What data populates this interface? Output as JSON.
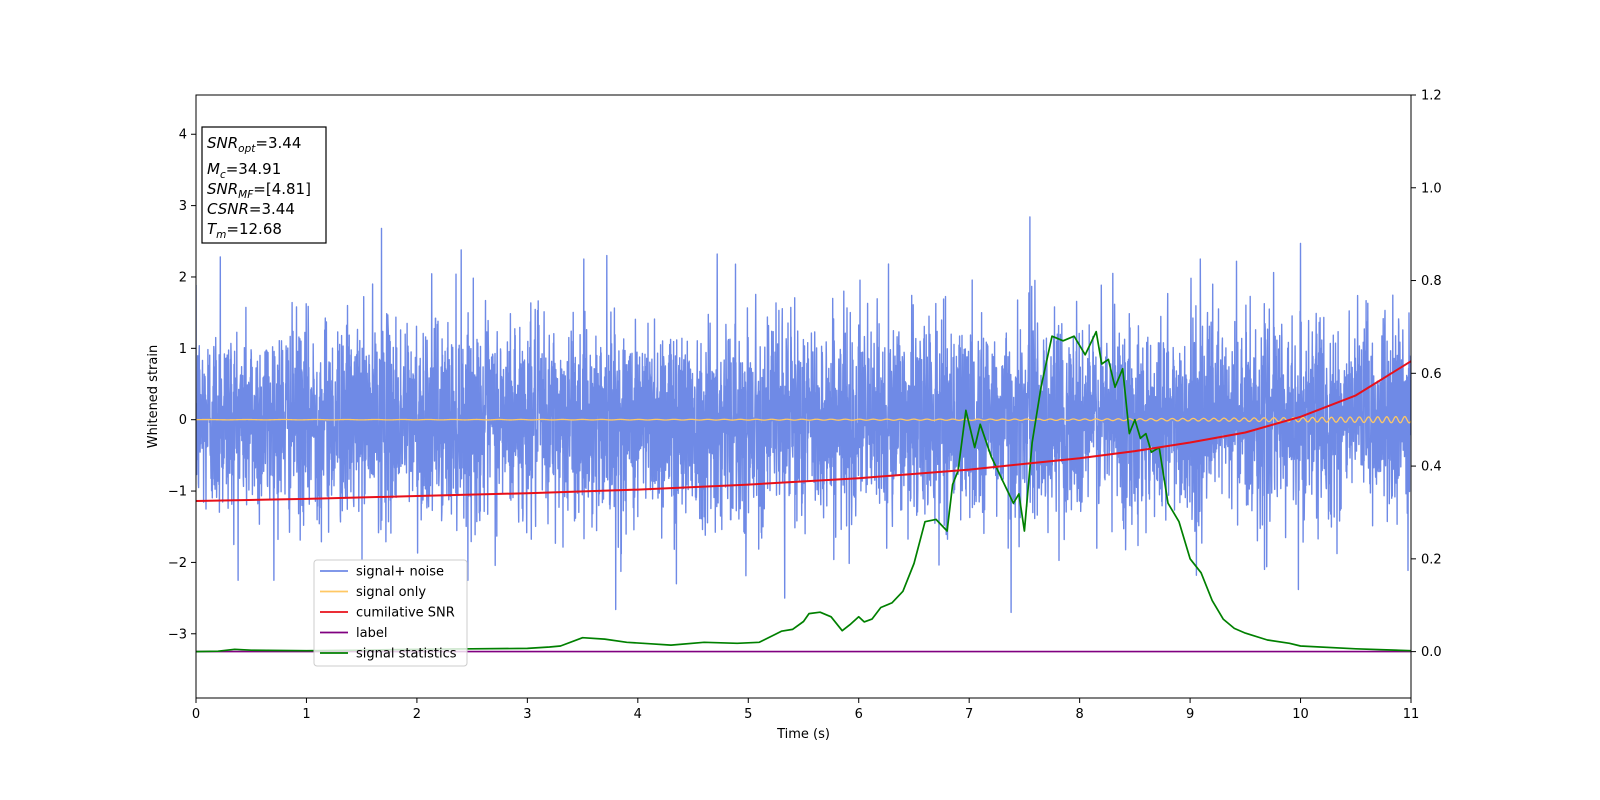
{
  "chart_data": {
    "type": "line",
    "title": "",
    "xlabel": "Time (s)",
    "ylabel": "Whitened strain",
    "xlim": [
      0,
      11
    ],
    "ylim": [
      -3.9,
      4.55
    ],
    "y2lim": [
      -0.1,
      1.2
    ],
    "xticks": [
      "0",
      "1",
      "2",
      "3",
      "4",
      "5",
      "6",
      "7",
      "8",
      "9",
      "10",
      "11"
    ],
    "yticks": [
      "−3",
      "−2",
      "−1",
      "0",
      "1",
      "2",
      "3",
      "4"
    ],
    "y2ticks": [
      "0.0",
      "0.2",
      "0.4",
      "0.6",
      "0.8",
      "1.0",
      "1.2"
    ],
    "grid": false,
    "legend_position": "lower-left",
    "annotation": {
      "lines": [
        {
          "sym": "SNR",
          "sub": "opt",
          "val": "=3.44"
        },
        {
          "sym": "M",
          "sub": "c",
          "val": "=34.91"
        },
        {
          "sym": "SNR",
          "sub": "MF",
          "val": "=[4.81]"
        },
        {
          "sym": "CSNR",
          "sub": "",
          "val": "=3.44"
        },
        {
          "sym": "T",
          "sub": "m",
          "val": "=12.68"
        }
      ]
    },
    "series": [
      {
        "name": "signal+ noise",
        "color": "#6f8ae6",
        "axis": "left",
        "kind": "noise",
        "amplitude_std": 0.68,
        "peaks": [
          {
            "x": 0.22,
            "y": 2.28
          },
          {
            "x": 1.68,
            "y": 2.68
          },
          {
            "x": 2.4,
            "y": 2.38
          },
          {
            "x": 3.8,
            "y": -2.66
          },
          {
            "x": 4.72,
            "y": 2.32
          },
          {
            "x": 5.33,
            "y": -2.5
          },
          {
            "x": 6.27,
            "y": 2.18
          },
          {
            "x": 7.55,
            "y": 2.84
          },
          {
            "x": 7.38,
            "y": -2.7
          },
          {
            "x": 10.0,
            "y": 2.47
          },
          {
            "x": 9.98,
            "y": -2.38
          },
          {
            "x": 3.72,
            "y": 2.3
          },
          {
            "x": 4.35,
            "y": -2.3
          },
          {
            "x": 8.3,
            "y": 2.05
          },
          {
            "x": 9.42,
            "y": 2.22
          }
        ]
      },
      {
        "name": "signal only",
        "color": "#ffc864",
        "axis": "left",
        "kind": "chirp",
        "x": [
          0,
          4,
          8,
          9,
          10,
          11
        ],
        "amplitude": [
          0.002,
          0.004,
          0.01,
          0.018,
          0.03,
          0.045
        ]
      },
      {
        "name": "cumilative SNR",
        "color": "#e8101a",
        "axis": "left",
        "kind": "line",
        "x": [
          0,
          1,
          2,
          3,
          4,
          5,
          6,
          7,
          7.5,
          8,
          8.5,
          9,
          9.5,
          10,
          10.5,
          11
        ],
        "y": [
          -1.14,
          -1.11,
          -1.07,
          -1.03,
          -0.98,
          -0.91,
          -0.82,
          -0.7,
          -0.62,
          -0.54,
          -0.44,
          -0.32,
          -0.18,
          0.04,
          0.34,
          0.82
        ]
      },
      {
        "name": "label",
        "color": "#800080",
        "axis": "right",
        "kind": "line",
        "x": [
          0,
          11
        ],
        "y": [
          0.0,
          0.0
        ]
      },
      {
        "name": "signal statistics",
        "color": "#008000",
        "axis": "right",
        "kind": "line",
        "x": [
          0,
          0.2,
          0.35,
          0.5,
          1.0,
          1.5,
          2.0,
          2.5,
          3.0,
          3.2,
          3.3,
          3.5,
          3.7,
          3.9,
          4.1,
          4.3,
          4.6,
          4.9,
          5.1,
          5.2,
          5.3,
          5.4,
          5.5,
          5.55,
          5.65,
          5.75,
          5.85,
          5.92,
          6.0,
          6.05,
          6.12,
          6.2,
          6.3,
          6.4,
          6.5,
          6.6,
          6.7,
          6.8,
          6.85,
          6.9,
          6.97,
          7.05,
          7.1,
          7.2,
          7.3,
          7.4,
          7.45,
          7.5,
          7.57,
          7.65,
          7.75,
          7.85,
          7.95,
          8.05,
          8.15,
          8.2,
          8.26,
          8.32,
          8.39,
          8.45,
          8.5,
          8.55,
          8.6,
          8.65,
          8.72,
          8.8,
          8.9,
          9.0,
          9.1,
          9.2,
          9.3,
          9.4,
          9.5,
          9.7,
          9.9,
          10.0,
          10.5,
          11.0
        ],
        "y": [
          0.0,
          0.001,
          0.005,
          0.003,
          0.002,
          0.003,
          0.005,
          0.006,
          0.007,
          0.01,
          0.012,
          0.03,
          0.027,
          0.02,
          0.017,
          0.014,
          0.02,
          0.018,
          0.02,
          0.032,
          0.044,
          0.048,
          0.065,
          0.082,
          0.085,
          0.075,
          0.045,
          0.058,
          0.075,
          0.064,
          0.07,
          0.095,
          0.105,
          0.13,
          0.19,
          0.28,
          0.285,
          0.26,
          0.36,
          0.39,
          0.52,
          0.44,
          0.49,
          0.42,
          0.37,
          0.32,
          0.34,
          0.26,
          0.45,
          0.57,
          0.68,
          0.67,
          0.68,
          0.64,
          0.69,
          0.62,
          0.63,
          0.57,
          0.61,
          0.47,
          0.5,
          0.46,
          0.47,
          0.43,
          0.44,
          0.32,
          0.28,
          0.2,
          0.17,
          0.11,
          0.07,
          0.05,
          0.04,
          0.025,
          0.018,
          0.012,
          0.006,
          0.002
        ]
      }
    ]
  }
}
